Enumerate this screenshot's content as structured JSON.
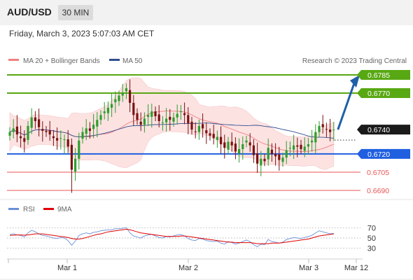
{
  "header": {
    "symbol": "AUD/USD",
    "timeframe": "30 MIN"
  },
  "datetime": "Friday, March 3, 2023 5:07:03 AM CET",
  "legend": {
    "ma20": {
      "label": "MA 20 + Bollinger Bands",
      "color": "#f08080"
    },
    "ma50": {
      "label": "MA 50",
      "color": "#2f4f8f"
    },
    "credit": "Research © 2023 Trading Central"
  },
  "rsi_legend": {
    "rsi": {
      "label": "RSI",
      "color": "#6a8fd8"
    },
    "ma": {
      "label": "9MA",
      "color": "#e00000"
    }
  },
  "levels": [
    {
      "label": "0.6785",
      "value": 0.6785,
      "kind": "resistance"
    },
    {
      "label": "0.6770",
      "value": 0.677,
      "kind": "resistance"
    },
    {
      "label": "0.6740",
      "value": 0.674,
      "kind": "last"
    },
    {
      "label": "0.6720",
      "value": 0.672,
      "kind": "pivot"
    },
    {
      "label": "0.6705",
      "value": 0.6705,
      "kind": "support"
    },
    {
      "label": "0.6690",
      "value": 0.669,
      "kind": "support"
    }
  ],
  "colors": {
    "resistance": "#58a813",
    "pivot": "#1f5fe0",
    "support": "#e85555",
    "last": "#1a1a1a",
    "bull": "#2e9e2e",
    "bear": "#7a1212",
    "arrow": "#1f5fa8",
    "band": "#fde2e2"
  },
  "rsi_axis_labels": [
    "70",
    "50",
    "30"
  ],
  "chart_data": {
    "type": "candlestick",
    "x_tick_labels": [
      "Mar 1",
      "Mar 2",
      "Mar 3",
      "Mar 12"
    ],
    "y_range": [
      0.6685,
      0.6795
    ],
    "last_price": 0.674,
    "forecast_target": 0.6785,
    "closes": [
      0.6738,
      0.6741,
      0.6736,
      0.6733,
      0.673,
      0.6743,
      0.675,
      0.6747,
      0.6742,
      0.6739,
      0.6738,
      0.6736,
      0.6733,
      0.6731,
      0.6733,
      0.6732,
      0.6726,
      0.6707,
      0.6716,
      0.6731,
      0.6738,
      0.6741,
      0.6739,
      0.6744,
      0.6748,
      0.6752,
      0.6755,
      0.6758,
      0.6761,
      0.6765,
      0.6768,
      0.677,
      0.6774,
      0.6762,
      0.6752,
      0.6748,
      0.6744,
      0.6749,
      0.6752,
      0.6755,
      0.6751,
      0.6747,
      0.6746,
      0.6749,
      0.6748,
      0.675,
      0.6753,
      0.6755,
      0.6752,
      0.6745,
      0.674,
      0.6738,
      0.6743,
      0.6741,
      0.6737,
      0.6735,
      0.6733,
      0.6734,
      0.6728,
      0.6725,
      0.673,
      0.6727,
      0.6722,
      0.6724,
      0.6728,
      0.6731,
      0.6727,
      0.6719,
      0.6712,
      0.6716,
      0.6714,
      0.6725,
      0.672,
      0.6718,
      0.6715,
      0.6717,
      0.6723,
      0.6725,
      0.6727,
      0.6726,
      0.6724,
      0.6726,
      0.6728,
      0.6731,
      0.6738,
      0.6743,
      0.6742,
      0.674,
      0.6738,
      0.674
    ],
    "rsi": [
      57,
      58,
      56,
      55,
      52,
      60,
      65,
      62,
      58,
      55,
      54,
      52,
      50,
      49,
      51,
      50,
      45,
      36,
      44,
      55,
      58,
      60,
      58,
      61,
      62,
      64,
      65,
      66,
      66,
      68,
      68,
      69,
      70,
      60,
      54,
      52,
      50,
      54,
      56,
      57,
      54,
      51,
      50,
      53,
      52,
      54,
      56,
      57,
      54,
      49,
      46,
      45,
      49,
      48,
      45,
      44,
      43,
      44,
      40,
      38,
      43,
      41,
      38,
      40,
      43,
      46,
      43,
      37,
      33,
      38,
      37,
      47,
      43,
      42,
      40,
      42,
      47,
      49,
      51,
      50,
      49,
      51,
      53,
      55,
      60,
      64,
      62,
      60,
      58,
      59
    ],
    "rsi_ma": [
      55,
      55.5,
      56,
      56,
      55.5,
      56,
      57,
      58,
      58,
      58,
      57,
      56,
      55,
      54,
      53,
      52,
      51,
      49,
      48,
      48,
      49,
      51,
      53,
      55,
      57,
      58,
      60,
      62,
      63,
      64,
      65,
      66,
      67,
      66,
      64,
      62,
      60,
      59,
      58,
      57,
      56,
      55,
      54,
      53,
      53,
      53,
      53,
      54,
      54,
      53,
      52,
      51,
      50,
      49,
      48,
      47,
      46,
      45,
      44,
      43,
      42,
      42,
      41,
      41,
      41,
      41,
      41,
      40,
      39,
      39,
      39,
      39,
      40,
      40,
      40,
      41,
      42,
      43,
      44,
      45,
      46,
      47,
      48,
      50,
      52,
      54,
      55,
      56,
      57,
      58
    ],
    "rsi_levels": [
      70,
      50,
      30
    ]
  }
}
